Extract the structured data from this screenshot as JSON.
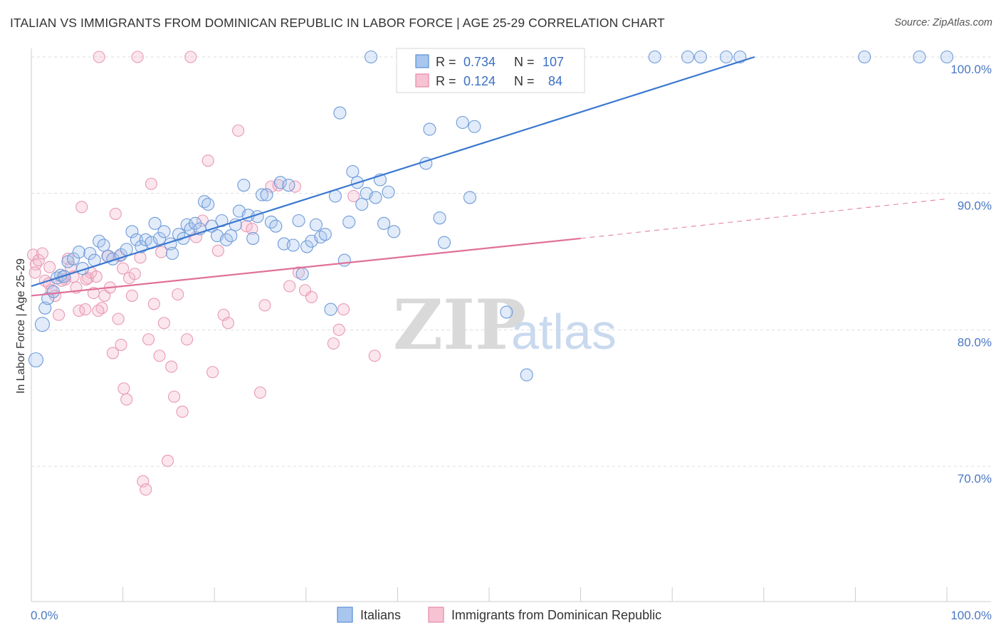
{
  "title": "ITALIAN VS IMMIGRANTS FROM DOMINICAN REPUBLIC IN LABOR FORCE | AGE 25-29 CORRELATION CHART",
  "source": "Source: ZipAtlas.com",
  "watermark": {
    "zip": "ZIP",
    "atlas": "atlas"
  },
  "colors": {
    "blue": "#3a78d0",
    "pink": "#e07099",
    "blue_fill": "#a8c6ee",
    "pink_fill": "#f4b8cc"
  },
  "legend": {
    "rows": [
      {
        "r_label": "R =",
        "r_value": "0.734",
        "n_label": "N =",
        "n_value": "107"
      },
      {
        "r_label": "R =",
        "r_value": "0.124",
        "n_label": "N =",
        "n_value": "84"
      }
    ]
  },
  "chart_data": {
    "type": "scatter",
    "title": "ITALIAN VS IMMIGRANTS FROM DOMINICAN REPUBLIC IN LABOR FORCE | AGE 25-29 CORRELATION CHART",
    "xlabel": "",
    "ylabel": "In Labor Force | Age 25-29",
    "xlim": [
      0,
      100
    ],
    "ylim": [
      60,
      101
    ],
    "x_tick_labels": [
      "0.0%",
      "100.0%"
    ],
    "y_ticks": [
      70,
      80,
      90,
      100
    ],
    "y_tick_labels": [
      "70.0%",
      "80.0%",
      "90.0%",
      "100.0%"
    ],
    "grid": true,
    "legend_position": "top-center",
    "series": [
      {
        "name": "Italians",
        "r": 0.734,
        "n": 107,
        "trend": {
          "x": [
            0,
            79
          ],
          "y": [
            83.2,
            100.0
          ],
          "dashed_to": null
        },
        "points": [
          [
            0.5,
            77.8
          ],
          [
            1.2,
            80.4
          ],
          [
            1.5,
            81.6
          ],
          [
            1.8,
            82.3
          ],
          [
            2.4,
            82.8
          ],
          [
            2.8,
            83.8
          ],
          [
            3.2,
            84.0
          ],
          [
            3.6,
            83.9
          ],
          [
            4.0,
            85.0
          ],
          [
            4.6,
            85.2
          ],
          [
            5.2,
            85.7
          ],
          [
            5.6,
            84.5
          ],
          [
            6.4,
            85.6
          ],
          [
            6.9,
            85.1
          ],
          [
            7.4,
            86.5
          ],
          [
            7.9,
            86.2
          ],
          [
            8.4,
            85.4
          ],
          [
            8.9,
            85.2
          ],
          [
            9.8,
            85.5
          ],
          [
            10.4,
            85.9
          ],
          [
            11.0,
            87.2
          ],
          [
            11.5,
            86.6
          ],
          [
            12.0,
            86.1
          ],
          [
            12.5,
            86.6
          ],
          [
            13.1,
            86.4
          ],
          [
            13.5,
            87.8
          ],
          [
            14.0,
            86.7
          ],
          [
            14.5,
            87.2
          ],
          [
            15.2,
            86.3
          ],
          [
            15.4,
            85.6
          ],
          [
            16.1,
            87.0
          ],
          [
            16.6,
            86.7
          ],
          [
            17.0,
            87.7
          ],
          [
            17.4,
            87.4
          ],
          [
            17.9,
            87.8
          ],
          [
            18.4,
            87.4
          ],
          [
            18.9,
            89.4
          ],
          [
            19.3,
            89.2
          ],
          [
            19.7,
            87.6
          ],
          [
            20.3,
            86.9
          ],
          [
            20.8,
            88.0
          ],
          [
            21.3,
            86.6
          ],
          [
            21.8,
            86.9
          ],
          [
            22.3,
            87.7
          ],
          [
            22.7,
            88.7
          ],
          [
            23.2,
            90.6
          ],
          [
            23.7,
            88.4
          ],
          [
            24.2,
            86.7
          ],
          [
            24.7,
            88.3
          ],
          [
            25.2,
            89.9
          ],
          [
            25.7,
            89.9
          ],
          [
            26.2,
            87.9
          ],
          [
            26.7,
            87.6
          ],
          [
            27.2,
            90.8
          ],
          [
            27.6,
            86.3
          ],
          [
            28.1,
            90.6
          ],
          [
            28.6,
            86.2
          ],
          [
            29.2,
            88.0
          ],
          [
            29.6,
            84.1
          ],
          [
            30.1,
            86.1
          ],
          [
            30.6,
            86.5
          ],
          [
            31.1,
            87.7
          ],
          [
            31.6,
            86.8
          ],
          [
            32.1,
            87.0
          ],
          [
            32.7,
            81.5
          ],
          [
            33.2,
            89.8
          ],
          [
            33.7,
            95.9
          ],
          [
            34.2,
            85.1
          ],
          [
            34.7,
            87.9
          ],
          [
            35.1,
            91.6
          ],
          [
            35.6,
            90.8
          ],
          [
            36.1,
            89.2
          ],
          [
            36.6,
            90.0
          ],
          [
            37.1,
            100.0
          ],
          [
            37.6,
            89.7
          ],
          [
            38.1,
            91.0
          ],
          [
            38.5,
            87.8
          ],
          [
            39.0,
            90.1
          ],
          [
            39.6,
            87.2
          ],
          [
            40.6,
            100.0
          ],
          [
            41.1,
            100.0
          ],
          [
            42.5,
            100.0
          ],
          [
            43.1,
            92.2
          ],
          [
            43.5,
            94.7
          ],
          [
            44.1,
            100.0
          ],
          [
            44.6,
            88.2
          ],
          [
            45.1,
            86.4
          ],
          [
            45.6,
            100.0
          ],
          [
            46.5,
            100.0
          ],
          [
            47.1,
            95.2
          ],
          [
            47.5,
            100.0
          ],
          [
            47.9,
            89.7
          ],
          [
            48.4,
            94.9
          ],
          [
            49.6,
            100.0
          ],
          [
            50.2,
            100.0
          ],
          [
            51.9,
            81.3
          ],
          [
            52.5,
            100.0
          ],
          [
            54.1,
            76.7
          ],
          [
            55.2,
            100.0
          ],
          [
            56.6,
            100.0
          ],
          [
            58.0,
            100.0
          ],
          [
            59.3,
            100.0
          ],
          [
            68.1,
            100.0
          ],
          [
            71.7,
            100.0
          ],
          [
            75.9,
            100.0
          ],
          [
            77.4,
            100.0
          ],
          [
            91.0,
            100.0
          ],
          [
            100.0,
            100.0
          ],
          [
            58.6,
            100.0
          ],
          [
            73.1,
            100.0
          ],
          [
            97.0,
            100.0
          ],
          [
            44.0,
            100.0
          ]
        ]
      },
      {
        "name": "Immigrants from Dominican Republic",
        "r": 0.124,
        "n": 84,
        "trend": {
          "x": [
            0,
            60
          ],
          "y": [
            82.5,
            86.7
          ],
          "dashed_to": [
            100,
            89.6
          ]
        },
        "points": [
          [
            0.2,
            85.5
          ],
          [
            0.5,
            84.8
          ],
          [
            0.8,
            85.1
          ],
          [
            1.2,
            85.6
          ],
          [
            1.5,
            83.6
          ],
          [
            1.9,
            83.4
          ],
          [
            2.2,
            82.9
          ],
          [
            2.6,
            82.5
          ],
          [
            3.0,
            81.1
          ],
          [
            3.4,
            83.9
          ],
          [
            3.7,
            83.7
          ],
          [
            4.0,
            85.2
          ],
          [
            4.3,
            84.6
          ],
          [
            4.6,
            83.9
          ],
          [
            4.9,
            83.1
          ],
          [
            5.2,
            81.4
          ],
          [
            5.5,
            89.0
          ],
          [
            5.9,
            81.5
          ],
          [
            6.2,
            83.8
          ],
          [
            6.5,
            84.2
          ],
          [
            6.8,
            82.7
          ],
          [
            7.1,
            83.9
          ],
          [
            7.4,
            100.0
          ],
          [
            7.7,
            81.6
          ],
          [
            8.0,
            82.5
          ],
          [
            8.3,
            85.4
          ],
          [
            8.6,
            83.1
          ],
          [
            8.9,
            78.3
          ],
          [
            9.2,
            88.5
          ],
          [
            9.5,
            80.8
          ],
          [
            9.8,
            78.9
          ],
          [
            10.1,
            75.7
          ],
          [
            10.4,
            74.9
          ],
          [
            10.7,
            83.8
          ],
          [
            11.0,
            82.5
          ],
          [
            11.3,
            84.1
          ],
          [
            11.6,
            100.0
          ],
          [
            11.9,
            85.3
          ],
          [
            12.2,
            68.9
          ],
          [
            12.5,
            68.3
          ],
          [
            12.8,
            79.3
          ],
          [
            13.1,
            90.7
          ],
          [
            13.4,
            81.9
          ],
          [
            14.0,
            78.1
          ],
          [
            14.5,
            80.5
          ],
          [
            14.9,
            70.4
          ],
          [
            15.3,
            77.3
          ],
          [
            15.6,
            75.1
          ],
          [
            16.0,
            82.6
          ],
          [
            16.5,
            74.0
          ],
          [
            17.0,
            79.3
          ],
          [
            17.4,
            100.0
          ],
          [
            18.0,
            86.8
          ],
          [
            18.7,
            88.0
          ],
          [
            19.3,
            92.4
          ],
          [
            19.8,
            76.9
          ],
          [
            20.4,
            85.8
          ],
          [
            21.0,
            81.1
          ],
          [
            21.5,
            80.5
          ],
          [
            22.6,
            94.6
          ],
          [
            23.5,
            87.6
          ],
          [
            24.1,
            87.4
          ],
          [
            25.0,
            75.4
          ],
          [
            25.5,
            81.8
          ],
          [
            26.2,
            90.5
          ],
          [
            27.0,
            90.6
          ],
          [
            28.2,
            83.2
          ],
          [
            28.8,
            90.5
          ],
          [
            29.2,
            84.2
          ],
          [
            29.9,
            82.9
          ],
          [
            30.6,
            82.4
          ],
          [
            33.0,
            79.0
          ],
          [
            33.6,
            80.0
          ],
          [
            34.1,
            81.5
          ],
          [
            35.2,
            89.8
          ],
          [
            37.5,
            78.1
          ],
          [
            2.0,
            84.6
          ],
          [
            3.3,
            83.6
          ],
          [
            6.0,
            83.7
          ],
          [
            7.3,
            81.4
          ],
          [
            10.0,
            84.5
          ],
          [
            14.2,
            85.7
          ],
          [
            9.6,
            85.4
          ],
          [
            0.4,
            84.2
          ]
        ]
      }
    ]
  },
  "bottom_legend": [
    "Italians",
    "Immigrants from Dominican Republic"
  ]
}
